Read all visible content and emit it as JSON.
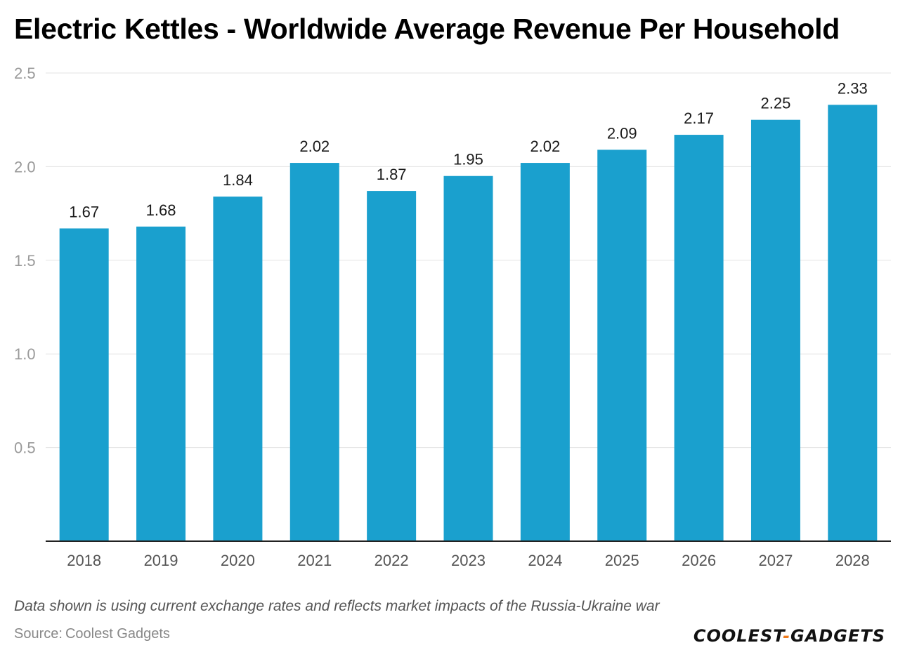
{
  "title": "Electric Kettles - Worldwide Average Revenue Per Household",
  "footnote": "Data shown is using current exchange rates and reflects market impacts of the Russia-Ukraine war",
  "source": {
    "label": "Source:",
    "value": "Coolest Gadgets"
  },
  "brand": {
    "part1": "COOLEST",
    "dash": "-",
    "part2": "GADGETS"
  },
  "colors": {
    "bar": "#1aa0ce",
    "brand_accent": "#f07a1a"
  },
  "chart_data": {
    "type": "bar",
    "title": "Electric Kettles - Worldwide Average Revenue Per Household",
    "xlabel": "",
    "ylabel": "",
    "categories": [
      "2018",
      "2019",
      "2020",
      "2021",
      "2022",
      "2023",
      "2024",
      "2025",
      "2026",
      "2027",
      "2028"
    ],
    "values": [
      1.67,
      1.68,
      1.84,
      2.02,
      1.87,
      1.95,
      2.02,
      2.09,
      2.17,
      2.25,
      2.33
    ],
    "value_labels": [
      "1.67",
      "1.68",
      "1.84",
      "2.02",
      "1.87",
      "1.95",
      "2.02",
      "2.09",
      "2.17",
      "2.25",
      "2.33"
    ],
    "ylim": [
      0,
      2.5
    ],
    "y_ticks": [
      0.5,
      1.0,
      1.5,
      2.0,
      2.5
    ],
    "y_tick_labels": [
      "0.5",
      "1.0",
      "1.5",
      "2.0",
      "2.5"
    ],
    "grid": true,
    "legend": "none"
  }
}
